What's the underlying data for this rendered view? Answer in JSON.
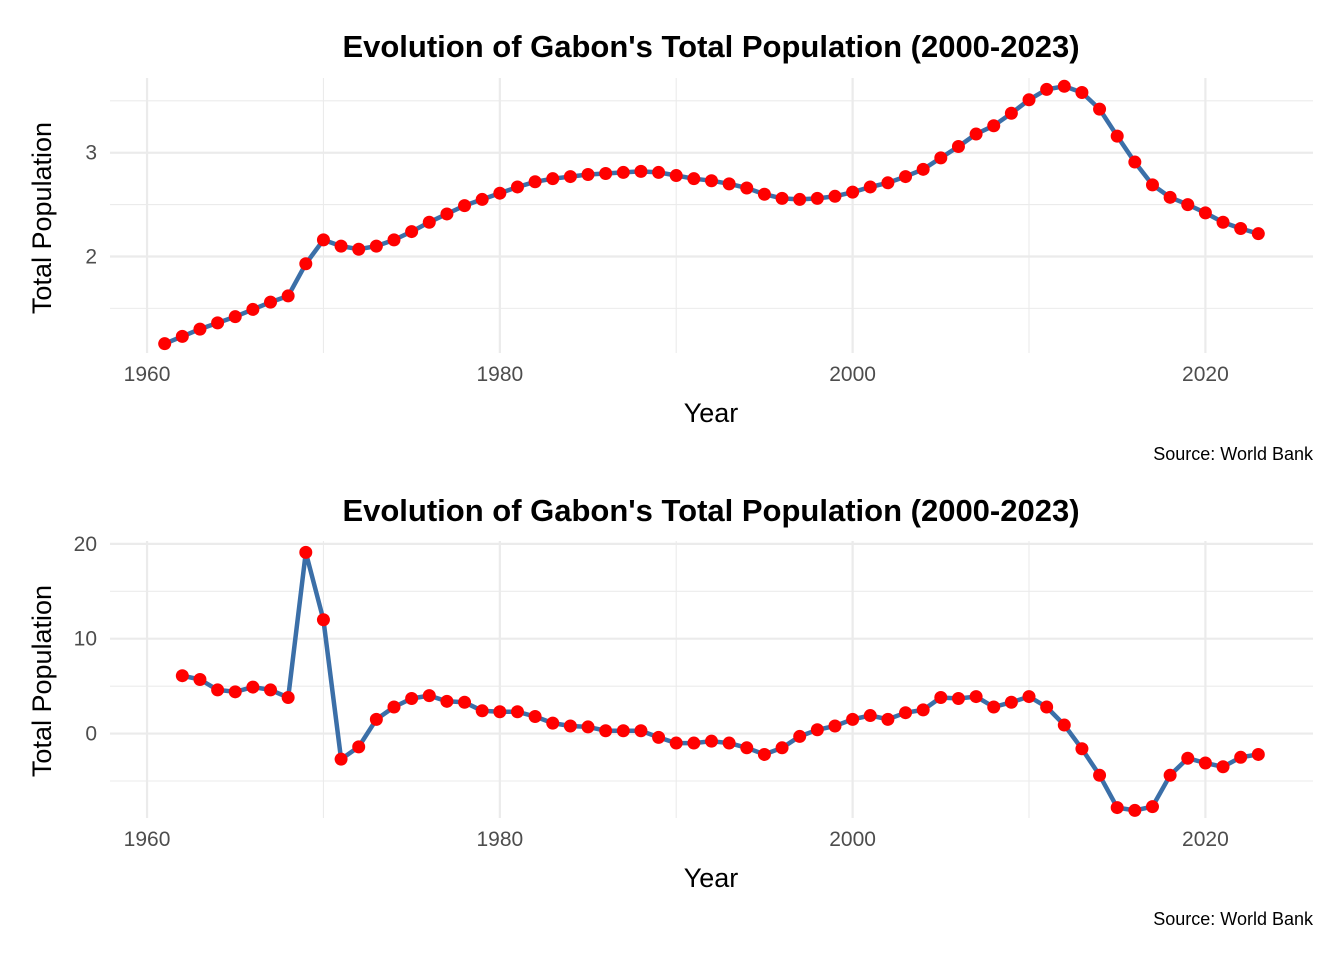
{
  "chart_data": [
    {
      "type": "line",
      "title": "Evolution of Gabon's Total Population (2000-2023)",
      "xlabel": "Year",
      "ylabel": "Total Population",
      "caption": "Source: World Bank",
      "x_ticks": [
        1960,
        1980,
        2000,
        2020
      ],
      "y_ticks": [
        2,
        3
      ],
      "xlim": [
        1957.9,
        2026.1
      ],
      "ylim": [
        1.07,
        3.72
      ],
      "grid": true,
      "line_color": "#3b6fa8",
      "point_color": "#ff0000",
      "x": [
        1961,
        1962,
        1963,
        1964,
        1965,
        1966,
        1967,
        1968,
        1969,
        1970,
        1971,
        1972,
        1973,
        1974,
        1975,
        1976,
        1977,
        1978,
        1979,
        1980,
        1981,
        1982,
        1983,
        1984,
        1985,
        1986,
        1987,
        1988,
        1989,
        1990,
        1991,
        1992,
        1993,
        1994,
        1995,
        1996,
        1997,
        1998,
        1999,
        2000,
        2001,
        2002,
        2003,
        2004,
        2005,
        2006,
        2007,
        2008,
        2009,
        2010,
        2011,
        2012,
        2013,
        2014,
        2015,
        2016,
        2017,
        2018,
        2019,
        2020,
        2021,
        2022,
        2023
      ],
      "y": [
        1.16,
        1.23,
        1.3,
        1.36,
        1.42,
        1.49,
        1.56,
        1.62,
        1.93,
        2.16,
        2.1,
        2.07,
        2.1,
        2.16,
        2.24,
        2.33,
        2.41,
        2.49,
        2.55,
        2.61,
        2.67,
        2.72,
        2.75,
        2.77,
        2.79,
        2.8,
        2.81,
        2.82,
        2.81,
        2.78,
        2.75,
        2.73,
        2.7,
        2.66,
        2.6,
        2.56,
        2.55,
        2.56,
        2.58,
        2.62,
        2.67,
        2.71,
        2.77,
        2.84,
        2.95,
        3.06,
        3.18,
        3.26,
        3.38,
        3.51,
        3.61,
        3.64,
        3.58,
        3.42,
        3.16,
        2.91,
        2.69,
        2.57,
        2.5,
        2.42,
        2.33,
        2.27,
        2.22
      ]
    },
    {
      "type": "line",
      "title": "Evolution of Gabon's Total Population (2000-2023)",
      "xlabel": "Year",
      "ylabel": "Total Population",
      "caption": "Source: World Bank",
      "x_ticks": [
        1960,
        1980,
        2000,
        2020
      ],
      "y_ticks": [
        0,
        10,
        20
      ],
      "xlim": [
        1957.9,
        2026.1
      ],
      "ylim": [
        -8.9,
        20.3
      ],
      "grid": true,
      "line_color": "#3b6fa8",
      "point_color": "#ff0000",
      "x": [
        1962,
        1963,
        1964,
        1965,
        1966,
        1967,
        1968,
        1969,
        1970,
        1971,
        1972,
        1973,
        1974,
        1975,
        1976,
        1977,
        1978,
        1979,
        1980,
        1981,
        1982,
        1983,
        1984,
        1985,
        1986,
        1987,
        1988,
        1989,
        1990,
        1991,
        1992,
        1993,
        1994,
        1995,
        1996,
        1997,
        1998,
        1999,
        2000,
        2001,
        2002,
        2003,
        2004,
        2005,
        2006,
        2007,
        2008,
        2009,
        2010,
        2011,
        2012,
        2013,
        2014,
        2015,
        2016,
        2017,
        2018,
        2019,
        2020,
        2021,
        2022,
        2023
      ],
      "y": [
        6.1,
        5.7,
        4.6,
        4.4,
        4.9,
        4.6,
        3.8,
        19.1,
        12.0,
        -2.7,
        -1.4,
        1.5,
        2.8,
        3.7,
        4.0,
        3.4,
        3.3,
        2.4,
        2.3,
        2.3,
        1.8,
        1.1,
        0.8,
        0.7,
        0.3,
        0.3,
        0.3,
        -0.4,
        -1.0,
        -1.0,
        -0.8,
        -1.0,
        -1.5,
        -2.2,
        -1.5,
        -0.3,
        0.4,
        0.8,
        1.5,
        1.9,
        1.5,
        2.2,
        2.5,
        3.8,
        3.7,
        3.9,
        2.8,
        3.3,
        3.9,
        2.8,
        0.9,
        -1.6,
        -4.4,
        -7.8,
        -8.1,
        -7.7,
        -4.4,
        -2.6,
        -3.1,
        -3.5,
        -2.5,
        -2.2
      ]
    }
  ]
}
